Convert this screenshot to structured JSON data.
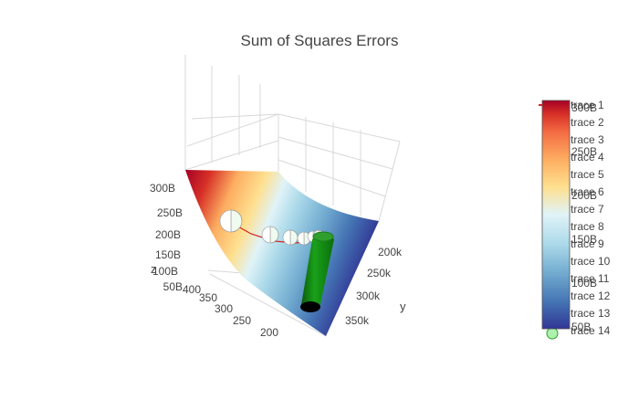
{
  "chart_data": {
    "type": "surface",
    "title": "Sum of Squares Errors",
    "axes": {
      "x": {
        "label": "",
        "ticks": [
          "200",
          "250",
          "300",
          "350",
          "400"
        ]
      },
      "y": {
        "label": "y",
        "ticks": [
          "200k",
          "250k",
          "300k",
          "350k"
        ]
      },
      "z": {
        "label": "z",
        "ticks": [
          "50B",
          "100B",
          "150B",
          "200B",
          "250B",
          "300B"
        ]
      }
    },
    "colorbar": {
      "colorscale": "RdBu (reversed)",
      "ticks": [
        "50B",
        "100B",
        "150B",
        "200B",
        "250B",
        "300B"
      ],
      "colors": [
        "#313695",
        "#4575b4",
        "#74add1",
        "#abd9e9",
        "#e0f3f8",
        "#fee090",
        "#fdae61",
        "#f46d43",
        "#d73027",
        "#a50026"
      ]
    },
    "legend": {
      "position": "right",
      "entries": [
        "trace 1",
        "trace 2",
        "trace 3",
        "trace 4",
        "trace 5",
        "trace 6",
        "trace 7",
        "trace 8",
        "trace 9",
        "trace 10",
        "trace 11",
        "trace 12",
        "trace 13",
        "trace 14"
      ]
    },
    "series": [
      {
        "name": "trace 1",
        "kind": "line",
        "color": "#d62728"
      },
      {
        "name": "trace 14",
        "kind": "marker",
        "color": "#2ca02c"
      }
    ],
    "grid": true
  }
}
